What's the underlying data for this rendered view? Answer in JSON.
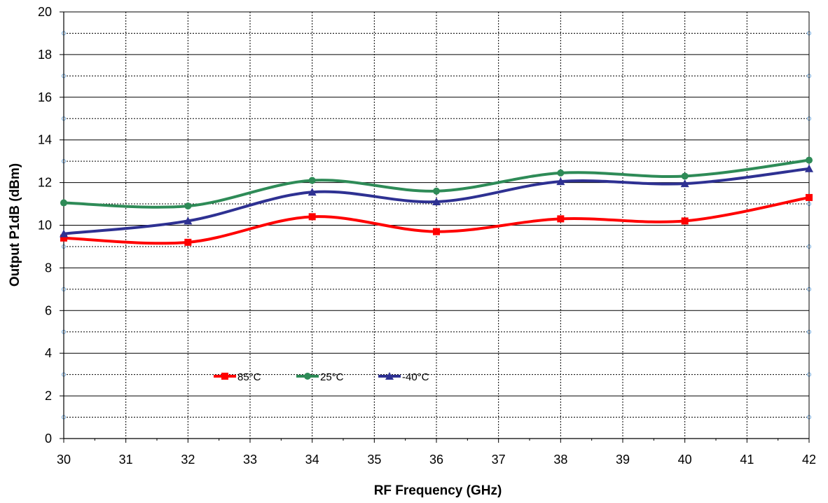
{
  "chart_data": {
    "type": "line",
    "title": "",
    "xlabel": "RF Frequency (GHz)",
    "ylabel": "Output P1dB (dBm)",
    "xlim": [
      30,
      42
    ],
    "ylim": [
      0,
      20
    ],
    "x_ticks": [
      30,
      31,
      32,
      33,
      34,
      35,
      36,
      37,
      38,
      39,
      40,
      41,
      42
    ],
    "y_ticks": [
      0,
      2,
      4,
      6,
      8,
      10,
      12,
      14,
      16,
      18,
      20
    ],
    "grid": "on",
    "legend_position": "lower-center",
    "x": [
      30,
      32,
      34,
      36,
      38,
      40,
      42
    ],
    "series": [
      {
        "name": "85°C",
        "color": "#ff0000",
        "marker": "square",
        "values": [
          9.4,
          9.2,
          10.4,
          9.7,
          10.3,
          10.2,
          11.3
        ]
      },
      {
        "name": "25°C",
        "color": "#2e8b57",
        "marker": "circle",
        "values": [
          11.05,
          10.9,
          12.1,
          11.6,
          12.45,
          12.3,
          13.05
        ]
      },
      {
        "name": "-40°C",
        "color": "#2e3192",
        "marker": "triangle",
        "values": [
          9.6,
          10.2,
          11.55,
          11.1,
          12.05,
          11.95,
          12.65
        ]
      }
    ]
  }
}
